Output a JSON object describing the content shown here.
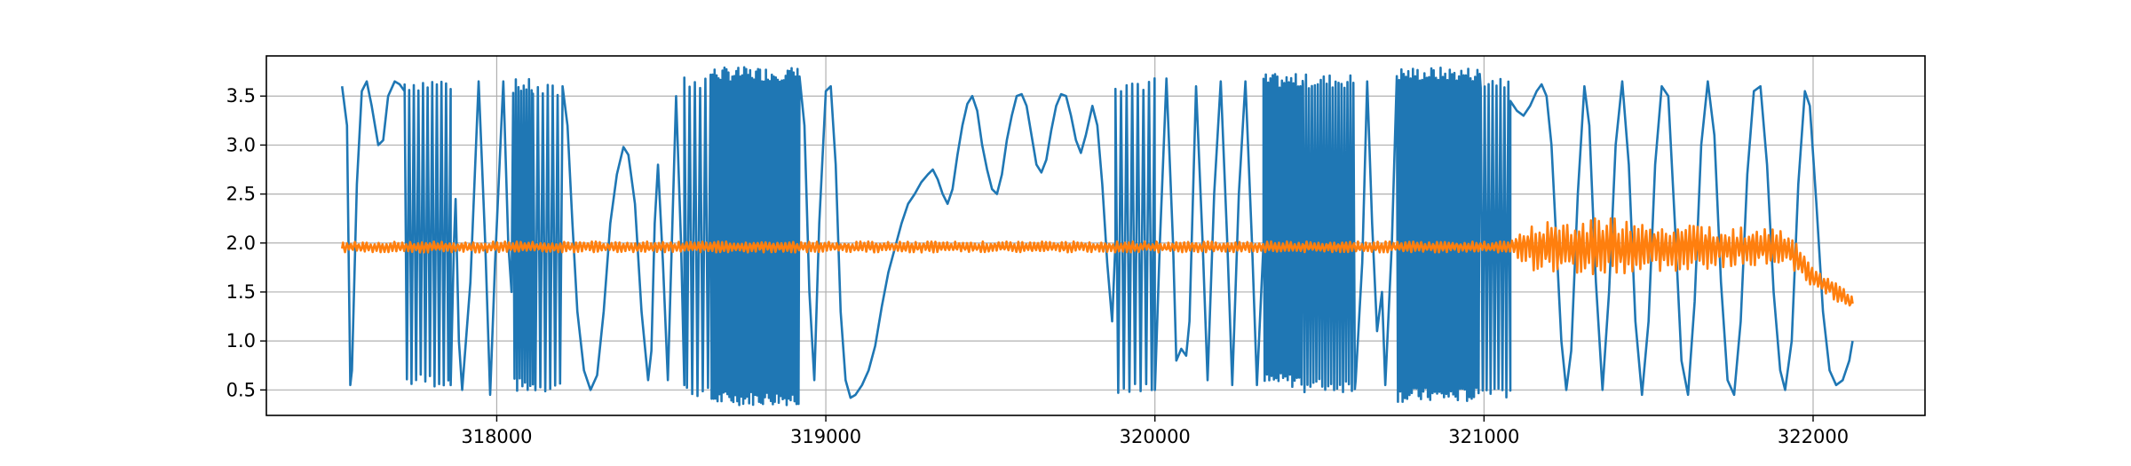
{
  "chart_data": {
    "type": "line",
    "title": "",
    "xlabel": "",
    "ylabel": "",
    "xlim": [
      317300,
      322340
    ],
    "ylim": [
      0.24,
      3.91
    ],
    "grid": true,
    "x_ticks": [
      318000,
      319000,
      320000,
      321000,
      322000
    ],
    "x_tick_labels": [
      "318000",
      "319000",
      "320000",
      "321000",
      "322000"
    ],
    "y_ticks": [
      0.5,
      1.0,
      1.5,
      2.0,
      2.5,
      3.0,
      3.5
    ],
    "y_tick_labels": [
      "0.5",
      "1.0",
      "1.5",
      "2.0",
      "2.5",
      "3.0",
      "3.5"
    ],
    "series": [
      {
        "color": "#1f77b4",
        "x_range": [
          317530,
          322120
        ],
        "segments": [
          {
            "kind": "points",
            "points": [
              [
                317530,
                3.6
              ],
              [
                317545,
                3.2
              ],
              [
                317555,
                0.55
              ],
              [
                317560,
                0.7
              ],
              [
                317575,
                2.6
              ],
              [
                317590,
                3.55
              ],
              [
                317605,
                3.65
              ],
              [
                317620,
                3.4
              ],
              [
                317640,
                3.0
              ],
              [
                317655,
                3.05
              ],
              [
                317670,
                3.5
              ],
              [
                317690,
                3.65
              ],
              [
                317705,
                3.62
              ],
              [
                317720,
                3.55
              ]
            ]
          },
          {
            "kind": "osc",
            "x0": 317720,
            "x1": 317860,
            "lo": 0.6,
            "hi": 3.62,
            "period": 14
          },
          {
            "kind": "points",
            "points": [
              [
                317860,
                0.55
              ],
              [
                317870,
                2.0
              ],
              [
                317875,
                2.45
              ],
              [
                317885,
                1.0
              ],
              [
                317895,
                0.5
              ],
              [
                317920,
                1.6
              ],
              [
                317945,
                3.65
              ],
              [
                317965,
                2.0
              ],
              [
                317980,
                0.45
              ],
              [
                317995,
                1.8
              ],
              [
                318020,
                3.65
              ],
              [
                318035,
                2.0
              ],
              [
                318045,
                1.5
              ]
            ]
          },
          {
            "kind": "osc",
            "x0": 318050,
            "x1": 318110,
            "lo": 0.55,
            "hi": 3.6,
            "period": 8
          },
          {
            "kind": "osc",
            "x0": 318110,
            "x1": 318200,
            "lo": 0.55,
            "hi": 3.55,
            "period": 15
          },
          {
            "kind": "points",
            "points": [
              [
                318200,
                3.6
              ],
              [
                318215,
                3.2
              ],
              [
                318230,
                2.2
              ],
              [
                318245,
                1.3
              ],
              [
                318265,
                0.7
              ],
              [
                318285,
                0.5
              ],
              [
                318305,
                0.65
              ],
              [
                318325,
                1.3
              ],
              [
                318345,
                2.2
              ],
              [
                318365,
                2.7
              ],
              [
                318385,
                2.98
              ],
              [
                318400,
                2.9
              ],
              [
                318420,
                2.4
              ],
              [
                318440,
                1.3
              ],
              [
                318460,
                0.6
              ],
              [
                318470,
                0.9
              ],
              [
                318480,
                2.2
              ],
              [
                318490,
                2.8
              ],
              [
                318505,
                1.8
              ],
              [
                318520,
                0.6
              ],
              [
                318545,
                3.5
              ],
              [
                318560,
                2.0
              ],
              [
                318570,
                0.55
              ]
            ]
          },
          {
            "kind": "osc",
            "x0": 318570,
            "x1": 318650,
            "lo": 0.5,
            "hi": 3.65,
            "period": 16
          },
          {
            "kind": "osc",
            "x0": 318650,
            "x1": 318920,
            "lo": 0.42,
            "hi": 3.72,
            "period": 6
          },
          {
            "kind": "points",
            "points": [
              [
                318920,
                3.7
              ],
              [
                318935,
                3.2
              ],
              [
                318950,
                1.5
              ],
              [
                318965,
                0.6
              ],
              [
                318980,
                2.2
              ],
              [
                319000,
                3.55
              ],
              [
                319015,
                3.6
              ],
              [
                319030,
                2.8
              ],
              [
                319045,
                1.3
              ],
              [
                319060,
                0.6
              ],
              [
                319075,
                0.42
              ],
              [
                319090,
                0.45
              ],
              [
                319110,
                0.55
              ],
              [
                319130,
                0.7
              ],
              [
                319150,
                0.95
              ],
              [
                319170,
                1.35
              ],
              [
                319190,
                1.7
              ],
              [
                319210,
                1.95
              ],
              [
                319230,
                2.2
              ],
              [
                319250,
                2.4
              ],
              [
                319270,
                2.5
              ],
              [
                319290,
                2.62
              ],
              [
                319310,
                2.7
              ],
              [
                319325,
                2.75
              ],
              [
                319340,
                2.65
              ],
              [
                319355,
                2.5
              ],
              [
                319370,
                2.4
              ],
              [
                319385,
                2.55
              ],
              [
                319400,
                2.9
              ],
              [
                319415,
                3.2
              ],
              [
                319430,
                3.42
              ],
              [
                319445,
                3.5
              ],
              [
                319460,
                3.35
              ],
              [
                319475,
                3.0
              ],
              [
                319490,
                2.75
              ],
              [
                319505,
                2.55
              ],
              [
                319520,
                2.5
              ],
              [
                319535,
                2.7
              ],
              [
                319550,
                3.05
              ],
              [
                319565,
                3.3
              ],
              [
                319580,
                3.5
              ],
              [
                319595,
                3.52
              ],
              [
                319610,
                3.4
              ],
              [
                319625,
                3.1
              ],
              [
                319640,
                2.8
              ],
              [
                319655,
                2.72
              ],
              [
                319670,
                2.85
              ],
              [
                319685,
                3.15
              ],
              [
                319700,
                3.4
              ],
              [
                319715,
                3.52
              ],
              [
                319730,
                3.5
              ],
              [
                319745,
                3.3
              ],
              [
                319760,
                3.05
              ],
              [
                319775,
                2.92
              ],
              [
                319790,
                3.1
              ],
              [
                319810,
                3.4
              ],
              [
                319825,
                3.2
              ],
              [
                319840,
                2.6
              ],
              [
                319855,
                1.8
              ],
              [
                319870,
                1.2
              ],
              [
                319880,
                2.0
              ]
            ]
          },
          {
            "kind": "osc",
            "x0": 319880,
            "x1": 320000,
            "lo": 0.5,
            "hi": 3.62,
            "period": 17
          },
          {
            "kind": "points",
            "points": [
              [
                320000,
                0.5
              ],
              [
                320015,
                2.0
              ],
              [
                320035,
                3.68
              ],
              [
                320055,
                2.0
              ],
              [
                320065,
                0.8
              ],
              [
                320080,
                0.92
              ],
              [
                320095,
                0.85
              ],
              [
                320105,
                1.2
              ],
              [
                320125,
                3.6
              ],
              [
                320145,
                2.0
              ],
              [
                320160,
                0.6
              ],
              [
                320180,
                2.5
              ],
              [
                320200,
                3.65
              ],
              [
                320220,
                2.0
              ],
              [
                320235,
                0.55
              ],
              [
                320255,
                2.5
              ],
              [
                320275,
                3.65
              ],
              [
                320295,
                2.0
              ],
              [
                320310,
                0.55
              ],
              [
                320330,
                2.0
              ]
            ]
          },
          {
            "kind": "osc",
            "x0": 320330,
            "x1": 320450,
            "lo": 0.6,
            "hi": 3.65,
            "period": 7
          },
          {
            "kind": "osc",
            "x0": 320450,
            "x1": 320610,
            "lo": 0.55,
            "hi": 3.65,
            "period": 9
          },
          {
            "kind": "points",
            "points": [
              [
                320610,
                0.6
              ],
              [
                320630,
                1.8
              ],
              [
                320645,
                3.65
              ],
              [
                320660,
                2.2
              ],
              [
                320675,
                1.1
              ],
              [
                320690,
                1.5
              ],
              [
                320700,
                0.55
              ],
              [
                320720,
                2.0
              ],
              [
                320735,
                3.7
              ]
            ]
          },
          {
            "kind": "osc",
            "x0": 320735,
            "x1": 320990,
            "lo": 0.45,
            "hi": 3.72,
            "period": 7
          },
          {
            "kind": "osc",
            "x0": 320990,
            "x1": 321080,
            "lo": 0.5,
            "hi": 3.65,
            "period": 12
          },
          {
            "kind": "points",
            "points": [
              [
                321080,
                3.45
              ],
              [
                321100,
                3.35
              ],
              [
                321120,
                3.3
              ],
              [
                321140,
                3.4
              ],
              [
                321160,
                3.55
              ],
              [
                321175,
                3.62
              ],
              [
                321190,
                3.5
              ],
              [
                321205,
                3.0
              ],
              [
                321220,
                2.0
              ],
              [
                321235,
                1.0
              ],
              [
                321250,
                0.5
              ],
              [
                321265,
                0.9
              ],
              [
                321285,
                2.5
              ],
              [
                321305,
                3.6
              ],
              [
                321320,
                3.2
              ],
              [
                321340,
                1.6
              ],
              [
                321360,
                0.5
              ],
              [
                321380,
                1.5
              ],
              [
                321400,
                3.0
              ],
              [
                321420,
                3.65
              ],
              [
                321440,
                2.8
              ],
              [
                321460,
                1.2
              ],
              [
                321480,
                0.45
              ],
              [
                321500,
                1.2
              ],
              [
                321520,
                2.8
              ],
              [
                321540,
                3.6
              ],
              [
                321560,
                3.5
              ],
              [
                321580,
                2.2
              ],
              [
                321600,
                0.8
              ],
              [
                321620,
                0.45
              ],
              [
                321640,
                1.4
              ],
              [
                321660,
                3.0
              ],
              [
                321680,
                3.65
              ],
              [
                321700,
                3.1
              ],
              [
                321720,
                1.6
              ],
              [
                321740,
                0.6
              ],
              [
                321760,
                0.45
              ],
              [
                321780,
                1.2
              ],
              [
                321800,
                2.7
              ],
              [
                321820,
                3.55
              ],
              [
                321840,
                3.6
              ],
              [
                321860,
                2.8
              ],
              [
                321880,
                1.5
              ],
              [
                321900,
                0.7
              ],
              [
                321915,
                0.5
              ],
              [
                321935,
                1.0
              ],
              [
                321955,
                2.6
              ],
              [
                321975,
                3.55
              ],
              [
                321990,
                3.4
              ],
              [
                322010,
                2.4
              ],
              [
                322030,
                1.3
              ],
              [
                322050,
                0.7
              ],
              [
                322070,
                0.55
              ],
              [
                322090,
                0.6
              ],
              [
                322110,
                0.8
              ],
              [
                322120,
                1.0
              ]
            ]
          }
        ]
      },
      {
        "color": "#ff7f0e",
        "x_range": [
          317530,
          322120
        ],
        "baseline": [
          [
            317530,
            1.96
          ],
          [
            321080,
            1.96
          ],
          [
            321920,
            1.96
          ],
          [
            321960,
            1.8
          ],
          [
            322000,
            1.65
          ],
          [
            322050,
            1.55
          ],
          [
            322120,
            1.38
          ]
        ],
        "amplitude": [
          [
            317530,
            0.04
          ],
          [
            321080,
            0.04
          ],
          [
            321150,
            0.18
          ],
          [
            321350,
            0.22
          ],
          [
            321700,
            0.16
          ],
          [
            321920,
            0.12
          ],
          [
            322000,
            0.08
          ],
          [
            322120,
            0.06
          ]
        ],
        "period": 12
      }
    ]
  }
}
